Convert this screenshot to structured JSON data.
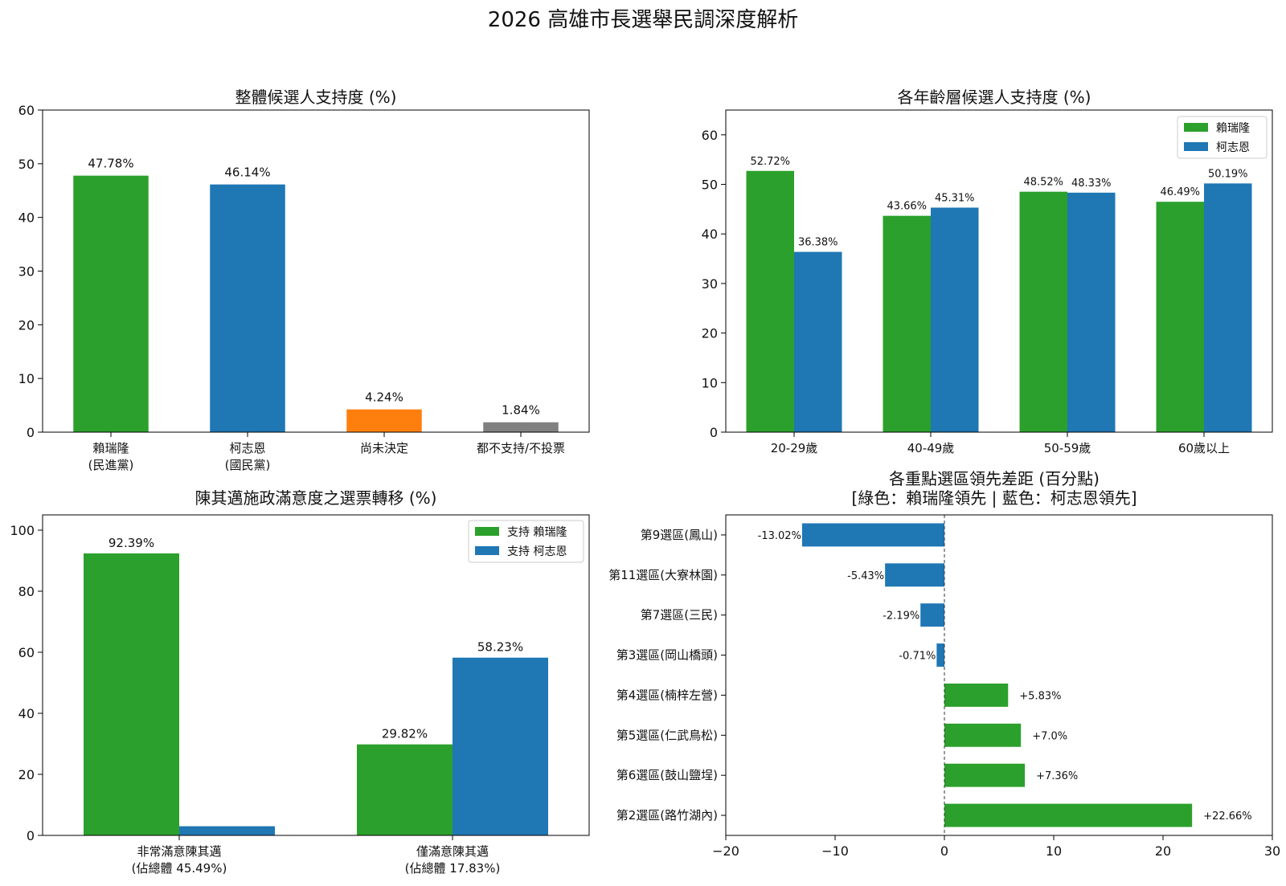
{
  "figure_title": "2026 高雄市長選舉民調深度解析",
  "colors": {
    "green": "#2ca02c",
    "blue": "#1f77b4",
    "orange": "#ff7f0e",
    "gray": "#808080",
    "axis": "#000000"
  },
  "chart_data": [
    {
      "id": "overall",
      "type": "bar",
      "title": "整體候選人支持度 (%)",
      "categories": [
        [
          "賴瑞隆",
          "(民進黨)"
        ],
        [
          "柯志恩",
          "(國民黨)"
        ],
        [
          "尚未決定"
        ],
        [
          "都不支持/不投票"
        ]
      ],
      "values": [
        47.78,
        46.14,
        4.24,
        1.84
      ],
      "value_labels": [
        "47.78%",
        "46.14%",
        "4.24%",
        "1.84%"
      ],
      "bar_colors": [
        "#2ca02c",
        "#1f77b4",
        "#ff7f0e",
        "#808080"
      ],
      "ylim": [
        0,
        60
      ],
      "yticks": [
        0,
        10,
        20,
        30,
        40,
        50,
        60
      ],
      "grid": false
    },
    {
      "id": "age",
      "type": "bar",
      "title": "各年齡層候選人支持度 (%)",
      "categories": [
        [
          "20-29歲"
        ],
        [
          "40-49歲"
        ],
        [
          "50-59歲"
        ],
        [
          "60歲以上"
        ]
      ],
      "series": [
        {
          "name": "賴瑞隆",
          "color": "#2ca02c",
          "values": [
            52.72,
            43.66,
            48.52,
            46.49
          ],
          "value_labels": [
            "52.72%",
            "43.66%",
            "48.52%",
            "46.49%"
          ]
        },
        {
          "name": "柯志恩",
          "color": "#1f77b4",
          "values": [
            36.38,
            45.31,
            48.33,
            50.19
          ],
          "value_labels": [
            "36.38%",
            "45.31%",
            "48.33%",
            "50.19%"
          ]
        }
      ],
      "ylim": [
        0,
        65
      ],
      "yticks": [
        0,
        10,
        20,
        30,
        40,
        50,
        60
      ],
      "legend": "top-right",
      "grid": false
    },
    {
      "id": "transfer",
      "type": "bar",
      "title": "陳其邁施政滿意度之選票轉移 (%)",
      "categories": [
        [
          "非常滿意陳其邁",
          "(佔總體 45.49%)"
        ],
        [
          "僅滿意陳其邁",
          "(佔總體 17.83%)"
        ]
      ],
      "series": [
        {
          "name": "支持 賴瑞隆",
          "color": "#2ca02c",
          "values": [
            92.39,
            29.82
          ],
          "value_labels": [
            "92.39%",
            "29.82%"
          ]
        },
        {
          "name": "支持 柯志恩",
          "color": "#1f77b4",
          "values": [
            3.0,
            58.23
          ],
          "value_labels": [
            "",
            "58.23%"
          ]
        }
      ],
      "ylim": [
        0,
        105
      ],
      "yticks": [
        0,
        20,
        40,
        60,
        80,
        100
      ],
      "legend": "top-right",
      "grid": false
    },
    {
      "id": "districts",
      "type": "bar",
      "orientation": "horizontal",
      "title": "各重點選區領先差距 (百分點)",
      "subtitle": "[綠色：賴瑞隆領先 | 藍色：柯志恩領先]",
      "categories": [
        "第9選區(鳳山)",
        "第11選區(大寮林園)",
        "第7選區(三民)",
        "第3選區(岡山橋頭)",
        "第4選區(楠梓左營)",
        "第5選區(仁武鳥松)",
        "第6選區(鼓山鹽埕)",
        "第2選區(路竹湖內)"
      ],
      "values": [
        -13.02,
        -5.43,
        -2.19,
        -0.71,
        5.83,
        7.0,
        7.36,
        22.66
      ],
      "value_labels": [
        "-13.02%",
        "-5.43%",
        "-2.19%",
        "-0.71%",
        "+5.83%",
        "+7.0%",
        "+7.36%",
        "+22.66%"
      ],
      "xlim": [
        -20,
        30
      ],
      "xticks": [
        -20,
        -10,
        0,
        10,
        20,
        30
      ],
      "xtick_labels": [
        "−20",
        "−10",
        "0",
        "10",
        "20",
        "30"
      ],
      "positive_color": "#2ca02c",
      "negative_color": "#1f77b4",
      "zero_line": "dashed",
      "grid": false
    }
  ]
}
